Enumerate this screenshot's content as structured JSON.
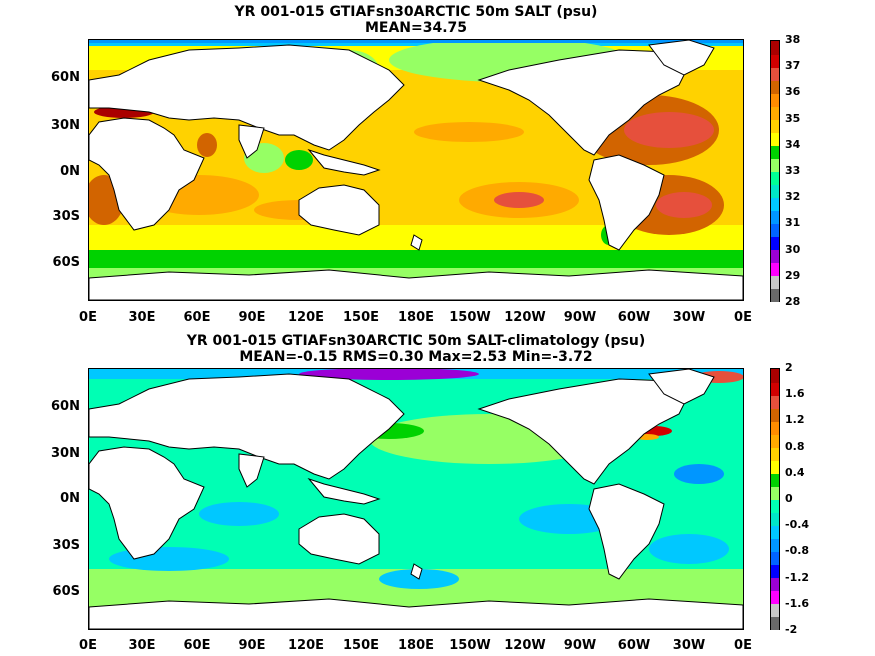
{
  "colors": {
    "land": "#ffffff",
    "coast": "#000000",
    "top_palette": [
      "#696969",
      "#c8c8c8",
      "#ff00ff",
      "#9b00d6",
      "#0000ff",
      "#0064ff",
      "#0096ff",
      "#00c8ff",
      "#00e6c8",
      "#00ff96",
      "#96ff64",
      "#00d200",
      "#ffff00",
      "#ffd200",
      "#ffaa00",
      "#ff8c00",
      "#d26400",
      "#e6503c",
      "#d20000",
      "#aa0000"
    ],
    "bottom_palette": [
      "#696969",
      "#c8c8c8",
      "#ff00ff",
      "#9b00d6",
      "#0000ff",
      "#0064ff",
      "#0096ff",
      "#00c8ff",
      "#00e6c8",
      "#00ffb4",
      "#96ff64",
      "#00d200",
      "#ffff00",
      "#ffd200",
      "#ffaa00",
      "#ff8c00",
      "#d26400",
      "#e6503c",
      "#d20000",
      "#aa0000"
    ]
  },
  "top": {
    "title": "YR 001-015 GTIAFsn30ARCTIC 50m SALT (psu)",
    "subtitle": "MEAN=34.75",
    "lat_labels": [
      "60N",
      "30N",
      "0N",
      "30S",
      "60S"
    ],
    "lon_labels": [
      "0E",
      "30E",
      "60E",
      "90E",
      "120E",
      "150E",
      "180E",
      "150W",
      "120W",
      "90W",
      "60W",
      "30W",
      "0E"
    ],
    "colorbar_ticks": [
      "28",
      "29",
      "30",
      "31",
      "32",
      "33",
      "34",
      "35",
      "36",
      "37",
      "38"
    ]
  },
  "bottom": {
    "title": "YR 001-015 GTIAFsn30ARCTIC 50m SALT-climatology (psu)",
    "subtitle": "MEAN=-0.15   RMS=0.30   Max=2.53   Min=-3.72",
    "lat_labels": [
      "60N",
      "30N",
      "0N",
      "30S",
      "60S"
    ],
    "lon_labels": [
      "0E",
      "30E",
      "60E",
      "90E",
      "120E",
      "150E",
      "180E",
      "150W",
      "120W",
      "90W",
      "60W",
      "30W",
      "0E"
    ],
    "colorbar_ticks": [
      "-2",
      "-1.6",
      "-1.2",
      "-0.8",
      "-0.4",
      "0",
      "0.4",
      "0.8",
      "1.2",
      "1.6",
      "2"
    ]
  }
}
